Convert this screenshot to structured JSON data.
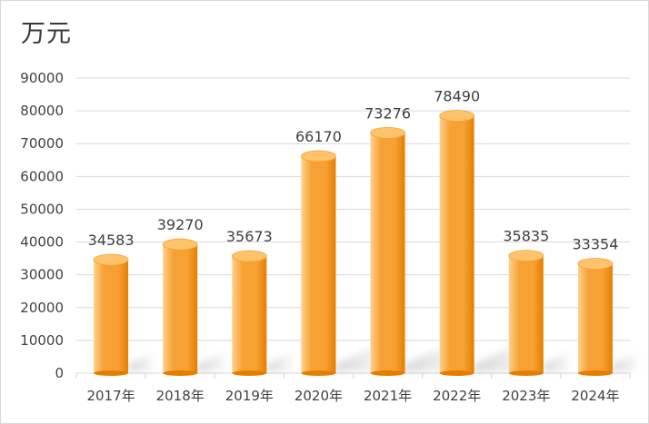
{
  "chart_data": {
    "type": "bar",
    "unit_label": "万元",
    "categories": [
      "2017年",
      "2018年",
      "2019年",
      "2020年",
      "2021年",
      "2022年",
      "2023年",
      "2024年"
    ],
    "values": [
      34583,
      39270,
      35673,
      66170,
      73276,
      78490,
      35835,
      33354
    ],
    "value_labels": [
      "34583",
      "39270",
      "35673",
      "66170",
      "73276",
      "78490",
      "35835",
      "33354"
    ],
    "ylim": [
      0,
      90000
    ],
    "yticks": [
      "0",
      "10000",
      "20000",
      "30000",
      "40000",
      "50000",
      "60000",
      "70000",
      "80000",
      "90000"
    ],
    "grid": true,
    "legend": "none",
    "style": "3d-cylinder",
    "colors": {
      "bar_light": "#ffd08a",
      "bar_main": "#f7a135",
      "bar_dark": "#e57e00",
      "bar_top": "#ffc46b",
      "grid": "#d9d9d9",
      "text": "#404040"
    }
  }
}
